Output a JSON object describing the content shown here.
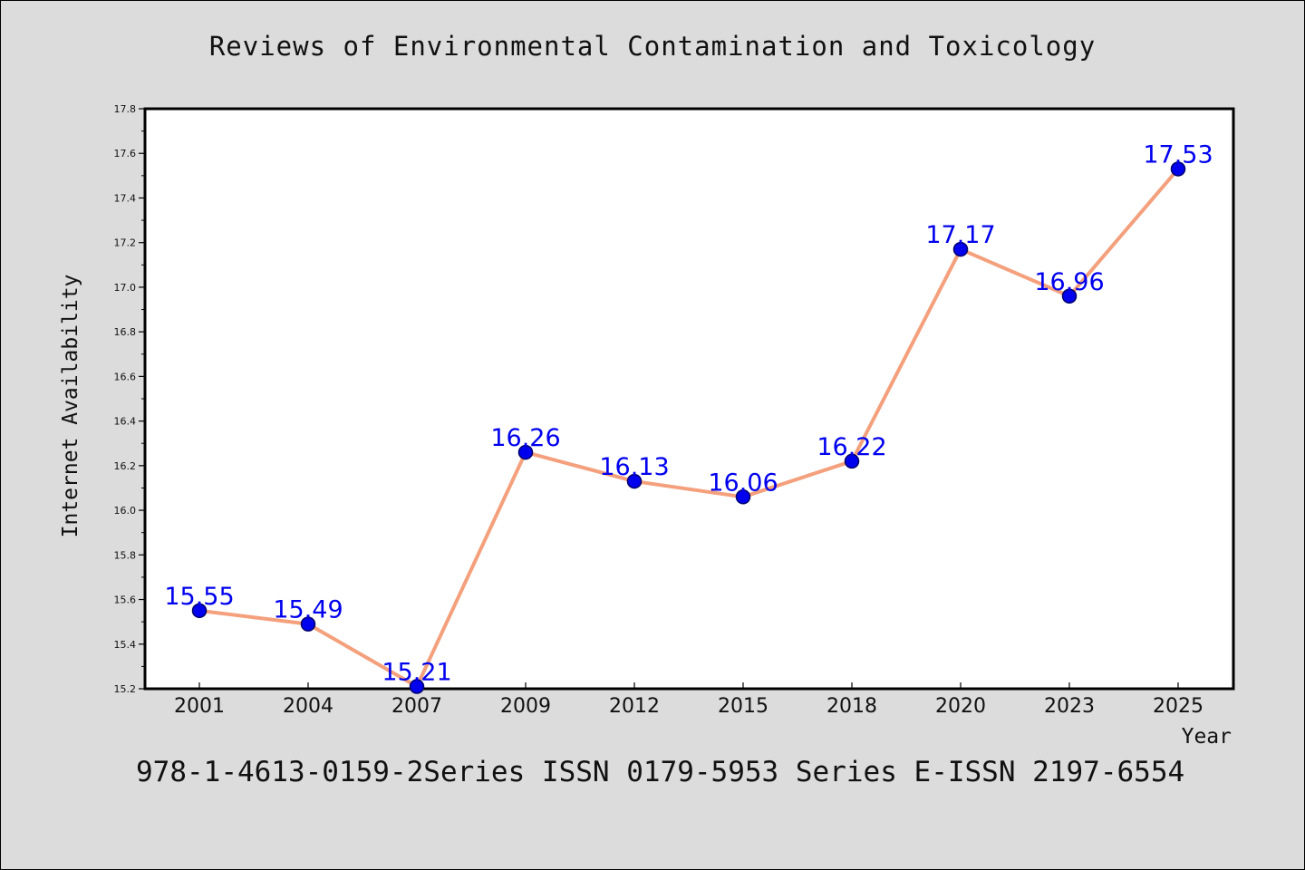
{
  "chart_data": {
    "type": "line",
    "title": "Reviews of Environmental Contamination and Toxicology",
    "xlabel": "Year",
    "ylabel": "Internet Availability",
    "categories": [
      "2001",
      "2004",
      "2007",
      "2009",
      "2012",
      "2015",
      "2018",
      "2020",
      "2023",
      "2025"
    ],
    "series": [
      {
        "values": [
          15.55,
          15.49,
          15.21,
          16.26,
          16.13,
          16.06,
          16.22,
          17.17,
          16.96,
          17.53
        ]
      }
    ],
    "data_labels": [
      "15.55",
      "15.49",
      "15.21",
      "16.26",
      "16.13",
      "16.06",
      "16.22",
      "17.17",
      "16.96",
      "17.53"
    ],
    "ylim": [
      15.2,
      17.8
    ],
    "yticks": [
      "15.2",
      "15.4",
      "15.6",
      "15.8",
      "16.0",
      "16.2",
      "16.4",
      "16.6",
      "16.8",
      "17.0",
      "17.2",
      "17.4",
      "17.6",
      "17.8"
    ],
    "grid": false,
    "legend": "none",
    "colors": {
      "line": "#f4a07c",
      "marker": "#0000ee",
      "marker_edge": "#00006a",
      "data_label": "#0000ee",
      "background": "#dcdcdc",
      "plot_background": "#ffffff"
    }
  },
  "footer_text": "978-1-4613-0159-2Series ISSN 0179-5953 Series E-ISSN 2197-6554"
}
